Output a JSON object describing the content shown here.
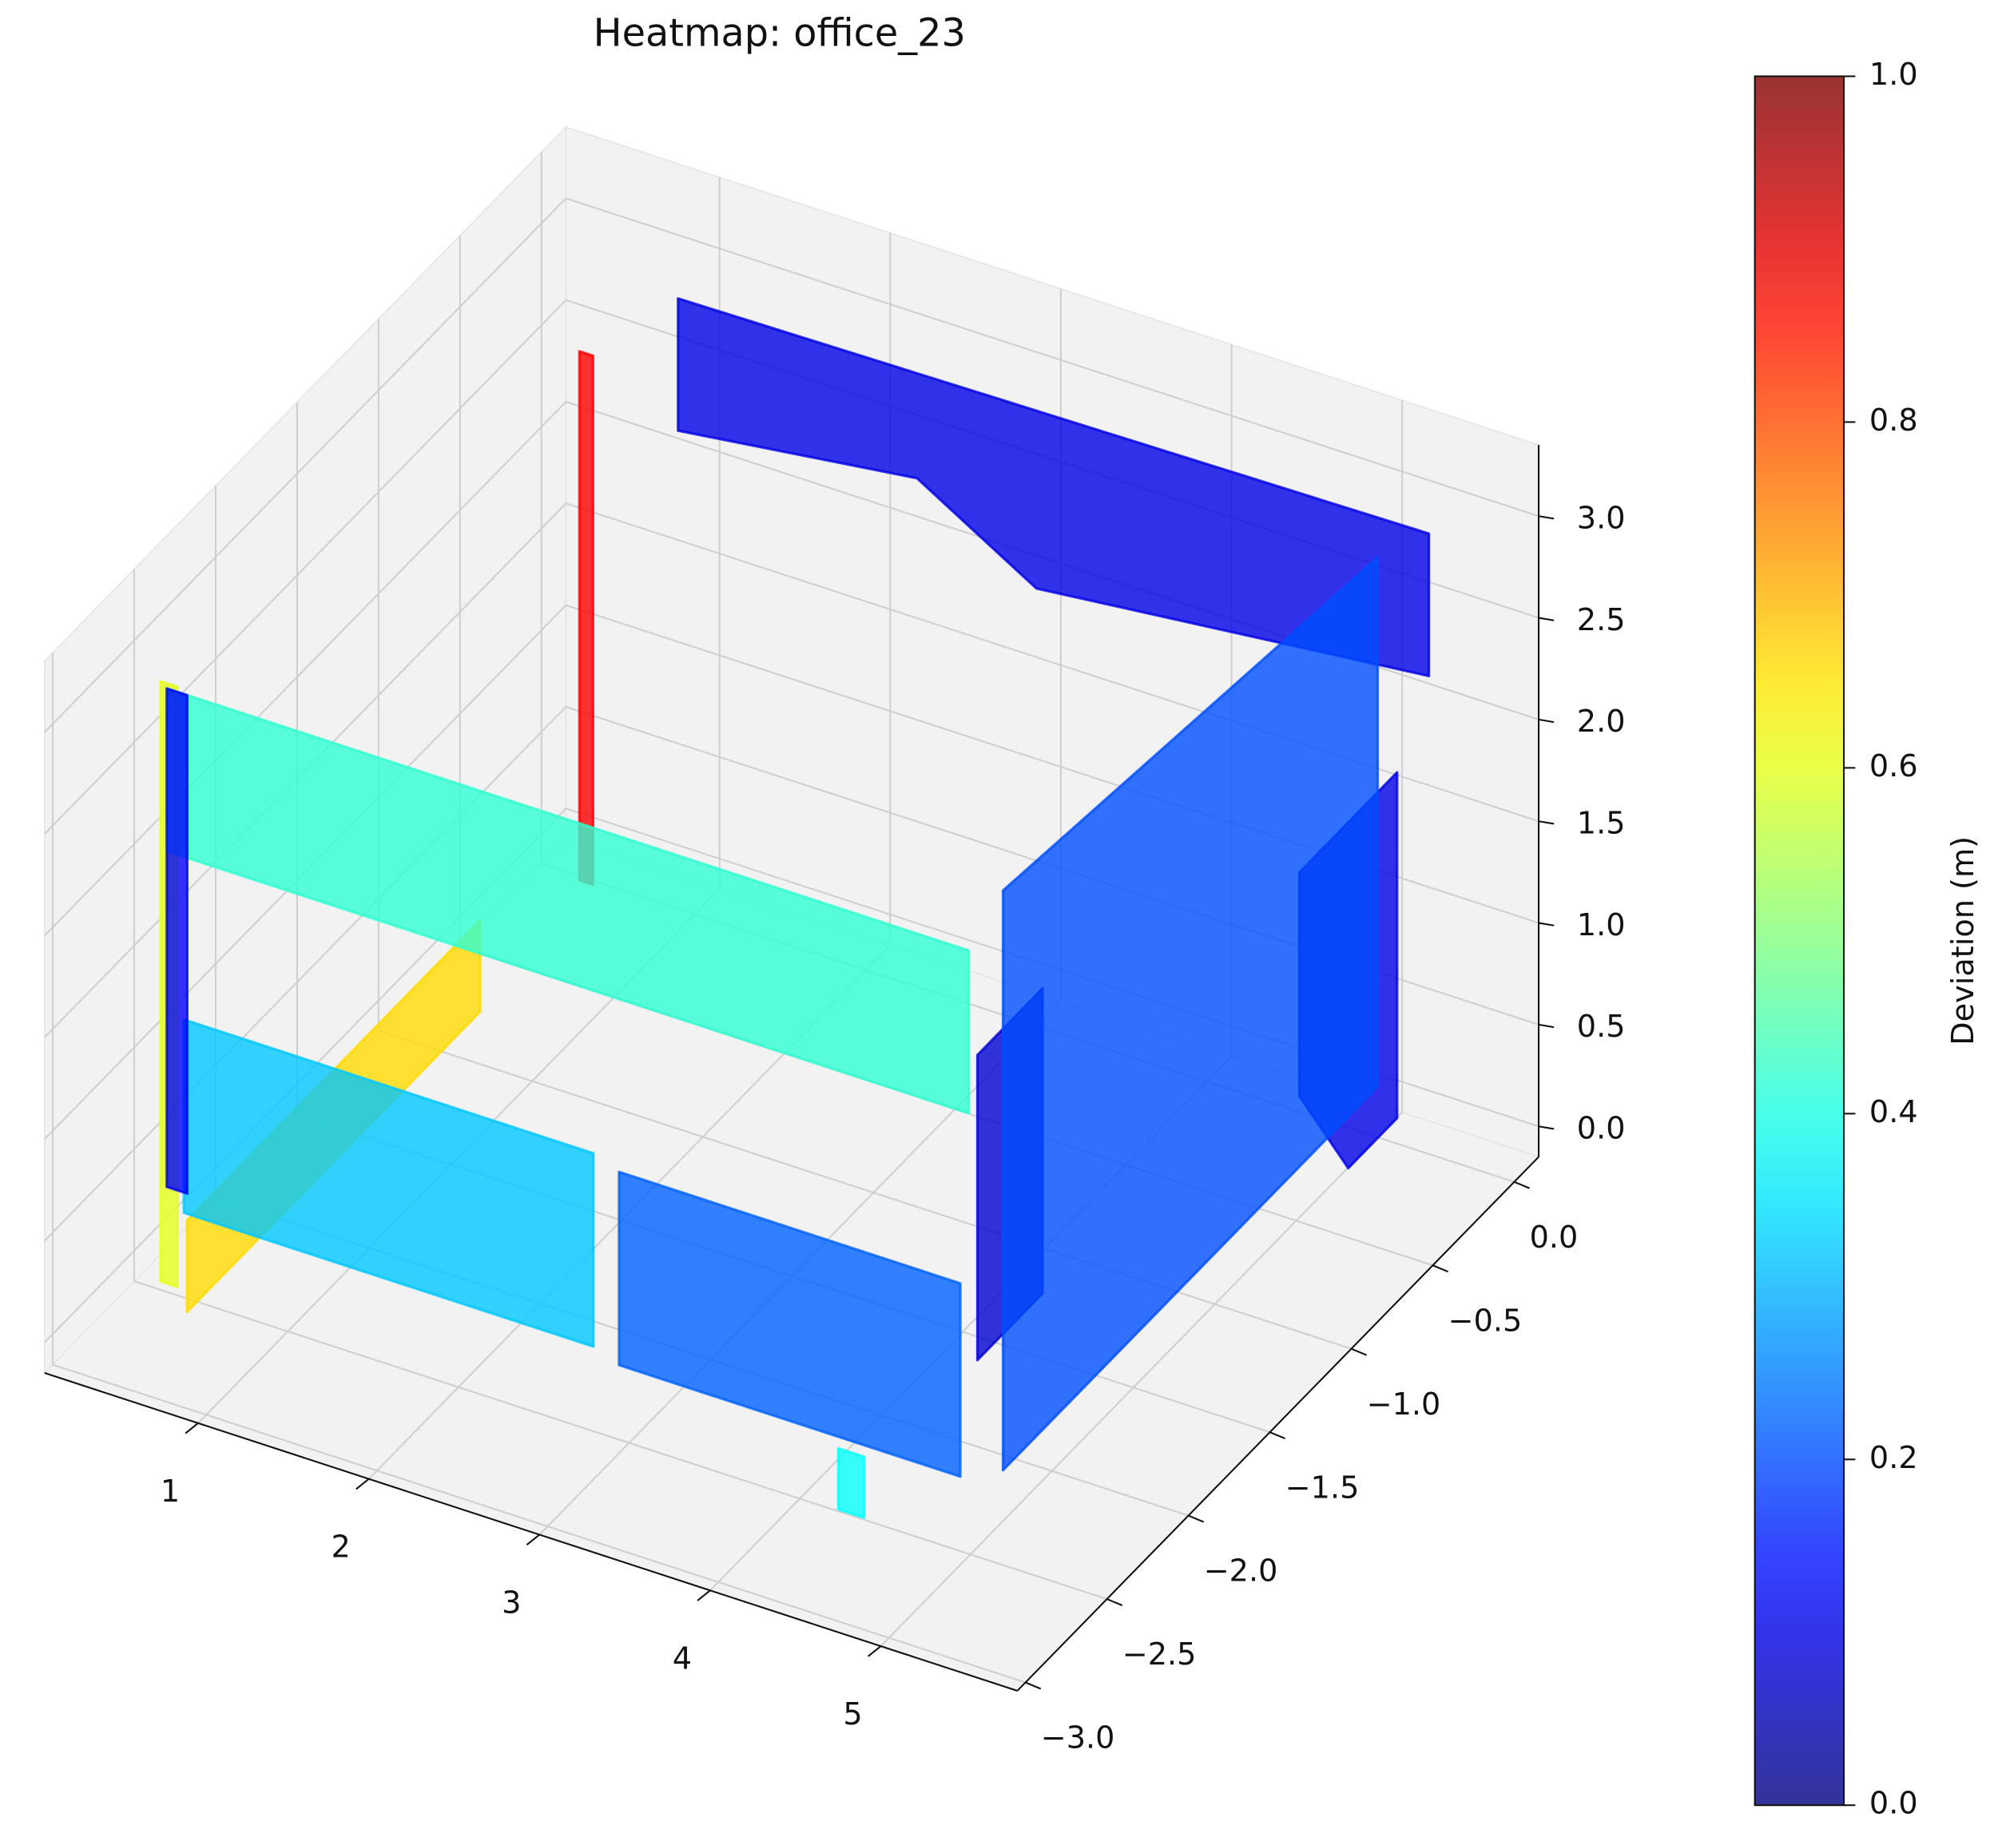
{
  "chart_data": {
    "type": "scatter3d",
    "title": "Heatmap: office_23",
    "xlim": [
      0.1,
      5.8
    ],
    "ylim": [
      -3.05,
      0.15
    ],
    "zlim": [
      -0.15,
      3.35
    ],
    "xticks": [
      1,
      2,
      3,
      4,
      5
    ],
    "yticks": [
      {
        "value": 0,
        "label": "0.0"
      },
      {
        "value": -0.5,
        "label": "−0.5"
      },
      {
        "value": -1,
        "label": "−1.0"
      },
      {
        "value": -1.5,
        "label": "−1.5"
      },
      {
        "value": -2,
        "label": "−2.0"
      },
      {
        "value": -2.5,
        "label": "−2.5"
      },
      {
        "value": -3,
        "label": "−3.0"
      }
    ],
    "zticks": [
      {
        "value": 0,
        "label": "0.0"
      },
      0.5,
      {
        "value": 1,
        "label": "1.0"
      },
      1.5,
      {
        "value": 2,
        "label": "2.0"
      },
      2.5,
      {
        "value": 3,
        "label": "3.0"
      }
    ],
    "grid": true,
    "colormap": "jet",
    "alpha": 0.8,
    "clim": [
      0,
      1
    ],
    "cticks": [
      {
        "value": 0,
        "label": "0.0"
      },
      0.2,
      0.4,
      0.6,
      0.8,
      {
        "value": 1,
        "label": "1.0"
      }
    ],
    "colorbar_label": "Deviation (m)",
    "patches": [
      {
        "x": [
          0.9,
          5.3,
          5.3,
          3.0,
          2.3,
          0.9
        ],
        "y": [
          0,
          0,
          0,
          0,
          0,
          0
        ],
        "z": [
          2.85,
          2.9,
          2.2,
          2.0,
          2.35,
          2.2
        ],
        "value": 0.1
      },
      {
        "x": [
          5.4,
          5.4,
          5.4,
          5.4,
          5.4
        ],
        "y": [
          -0.3,
          -0.9,
          -0.9,
          -0.6,
          -0.3
        ],
        "z": [
          2.0,
          2.0,
          0.9,
          0.3,
          0.3
        ],
        "value": 0.1
      },
      {
        "x": [
          1.0,
          1.08,
          1.08,
          1.0
        ],
        "y": [
          -0.71,
          -0.71,
          -0.71,
          -0.71
        ],
        "z": [
          0.6,
          0.6,
          3.2,
          3.2
        ],
        "value": 0.88
      },
      {
        "x": [
          0.6,
          0.6,
          0.6,
          0.6
        ],
        "y": [
          -2.7,
          -0.9,
          -0.9,
          -2.7
        ],
        "z": [
          0,
          0,
          0.45,
          0.45
        ],
        "value": 0.66
      },
      {
        "x": [
          0.35,
          0.45,
          0.45,
          0.35
        ],
        "y": [
          -2.6,
          -2.6,
          -2.6,
          -2.6
        ],
        "z": [
          0,
          0,
          2.95,
          2.95
        ],
        "value": 0.6
      },
      {
        "x": [
          0.2,
          2.6,
          2.6,
          0.2
        ],
        "y": [
          -2.3,
          -2.3,
          -2.3,
          -2.3
        ],
        "z": [
          0.05,
          0.05,
          1.0,
          1.0
        ],
        "value": 0.32
      },
      {
        "x": [
          2.75,
          4.75,
          4.75,
          2.75
        ],
        "y": [
          -2.3,
          -2.3,
          -2.3,
          -2.3
        ],
        "z": [
          0,
          0,
          0.95,
          0.95
        ],
        "value": 0.22
      },
      {
        "x": [
          0.1,
          4.8,
          4.8,
          0.1
        ],
        "y": [
          -2.3,
          -2.3,
          -2.3,
          -2.3
        ],
        "z": [
          2.6,
          2.6,
          1.8,
          1.8
        ],
        "value": 0.42
      },
      {
        "x": [
          0.1,
          0.22,
          0.22,
          0.1
        ],
        "y": [
          -2.3,
          -2.3,
          -2.3,
          -2.3
        ],
        "z": [
          0.15,
          0.15,
          2.6,
          2.6
        ],
        "value": 0.12
      },
      {
        "x": [
          4.85,
          4.85,
          4.85,
          4.85
        ],
        "y": [
          -2.3,
          -1.9,
          -1.9,
          -2.3
        ],
        "z": [
          0.6,
          0.6,
          2.1,
          2.1
        ],
        "value": 0.08
      },
      {
        "x": [
          5.0,
          5.0,
          5.0,
          5.0
        ],
        "y": [
          0,
          -2.3,
          -2.3,
          0
        ],
        "z": [
          2.7,
          2.95,
          0.1,
          0.1
        ],
        "value": 0.2
      },
      {
        "x": [
          4.35,
          4.5,
          4.5,
          4.35
        ],
        "y": [
          -2.63,
          -2.63,
          -2.63,
          -2.63
        ],
        "z": [
          0,
          0,
          0.3,
          0.3
        ],
        "value": 0.38
      }
    ]
  }
}
